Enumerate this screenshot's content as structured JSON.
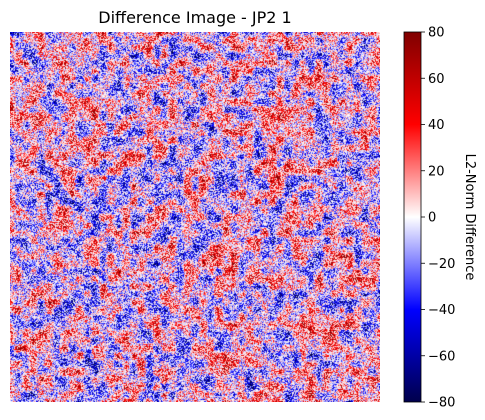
{
  "chart_data": {
    "type": "heatmap",
    "title": "Difference Image - JP2 1",
    "colorbar": {
      "label": "L2-Norm Difference",
      "range": [
        -80,
        80
      ],
      "ticks": [
        80,
        60,
        40,
        20,
        0,
        -20,
        -40,
        -60,
        -80
      ],
      "tick_labels": [
        "80",
        "60",
        "40",
        "20",
        "0",
        "−20",
        "−40",
        "−60",
        "−80"
      ],
      "colormap": "seismic",
      "colors": {
        "low": "#00004c",
        "mid_low": "#0000ff",
        "center": "#ffffff",
        "mid_high": "#ff0000",
        "high": "#800000"
      }
    },
    "axes_visible": false
  }
}
